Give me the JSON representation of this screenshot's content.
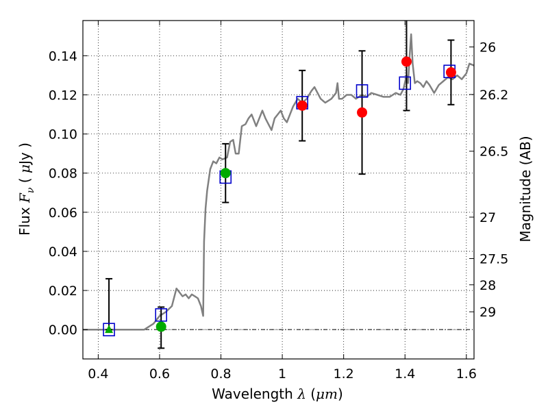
{
  "chart_data": {
    "type": "scatter",
    "xlabel": {
      "prefix": "Wavelength",
      "symbol": "λ",
      "open": "(",
      "unit": "μm",
      "close": ")"
    },
    "ylabel": {
      "prefix": "Flux",
      "symbol": "F",
      "subscript": "ν",
      "open": "(",
      "unit_mu": "μ",
      "unit_rest": "Jy",
      "close": ")"
    },
    "ylabel_right": "Magnitude (AB)",
    "xlim": [
      0.35,
      1.625
    ],
    "ylim": [
      -0.015,
      0.158
    ],
    "grid": true,
    "x_ticks": [
      {
        "value": 0.4,
        "label": "0.4"
      },
      {
        "value": 0.6,
        "label": "0.6"
      },
      {
        "value": 0.8,
        "label": "0.8"
      },
      {
        "value": 1.0,
        "label": "1"
      },
      {
        "value": 1.2,
        "label": "1.2"
      },
      {
        "value": 1.4,
        "label": "1.4"
      },
      {
        "value": 1.6,
        "label": "1.6"
      }
    ],
    "y_ticks": [
      {
        "value": 0.0,
        "label": "0.00"
      },
      {
        "value": 0.02,
        "label": "0.02"
      },
      {
        "value": 0.04,
        "label": "0.04"
      },
      {
        "value": 0.06,
        "label": "0.06"
      },
      {
        "value": 0.08,
        "label": "0.08"
      },
      {
        "value": 0.1,
        "label": "0.10"
      },
      {
        "value": 0.12,
        "label": "0.12"
      },
      {
        "value": 0.14,
        "label": "0.14"
      }
    ],
    "right_ticks": [
      {
        "label": "26",
        "flux": 0.1445
      },
      {
        "label": "26.2",
        "flux": 0.1202
      },
      {
        "label": "26.5",
        "flux": 0.0912
      },
      {
        "label": "27",
        "flux": 0.0575
      },
      {
        "label": "27.5",
        "flux": 0.0363
      },
      {
        "label": "28",
        "flux": 0.0229
      },
      {
        "label": "29",
        "flux": 0.0091
      }
    ],
    "spectrum": {
      "color": "#808080",
      "points": [
        [
          0.35,
          0.0
        ],
        [
          0.55,
          0.0
        ],
        [
          0.58,
          0.003
        ],
        [
          0.6,
          0.007
        ],
        [
          0.62,
          0.009
        ],
        [
          0.64,
          0.012
        ],
        [
          0.655,
          0.021
        ],
        [
          0.665,
          0.019
        ],
        [
          0.675,
          0.017
        ],
        [
          0.685,
          0.018
        ],
        [
          0.695,
          0.016
        ],
        [
          0.705,
          0.018
        ],
        [
          0.715,
          0.017
        ],
        [
          0.725,
          0.016
        ],
        [
          0.735,
          0.012
        ],
        [
          0.742,
          0.007
        ],
        [
          0.745,
          0.045
        ],
        [
          0.75,
          0.062
        ],
        [
          0.755,
          0.071
        ],
        [
          0.765,
          0.082
        ],
        [
          0.775,
          0.086
        ],
        [
          0.785,
          0.085
        ],
        [
          0.795,
          0.088
        ],
        [
          0.805,
          0.087
        ],
        [
          0.82,
          0.088
        ],
        [
          0.83,
          0.096
        ],
        [
          0.84,
          0.097
        ],
        [
          0.848,
          0.09
        ],
        [
          0.858,
          0.09
        ],
        [
          0.868,
          0.104
        ],
        [
          0.88,
          0.105
        ],
        [
          0.89,
          0.108
        ],
        [
          0.9,
          0.11
        ],
        [
          0.915,
          0.104
        ],
        [
          0.925,
          0.108
        ],
        [
          0.935,
          0.112
        ],
        [
          0.945,
          0.108
        ],
        [
          0.955,
          0.105
        ],
        [
          0.965,
          0.102
        ],
        [
          0.975,
          0.108
        ],
        [
          0.985,
          0.11
        ],
        [
          0.995,
          0.112
        ],
        [
          1.005,
          0.108
        ],
        [
          1.015,
          0.106
        ],
        [
          1.025,
          0.11
        ],
        [
          1.035,
          0.114
        ],
        [
          1.05,
          0.118
        ],
        [
          1.065,
          0.116
        ],
        [
          1.08,
          0.118
        ],
        [
          1.095,
          0.122
        ],
        [
          1.105,
          0.124
        ],
        [
          1.115,
          0.121
        ],
        [
          1.125,
          0.118
        ],
        [
          1.14,
          0.116
        ],
        [
          1.16,
          0.118
        ],
        [
          1.175,
          0.121
        ],
        [
          1.18,
          0.126
        ],
        [
          1.185,
          0.118
        ],
        [
          1.195,
          0.118
        ],
        [
          1.21,
          0.12
        ],
        [
          1.225,
          0.12
        ],
        [
          1.24,
          0.118
        ],
        [
          1.26,
          0.12
        ],
        [
          1.275,
          0.119
        ],
        [
          1.29,
          0.121
        ],
        [
          1.31,
          0.12
        ],
        [
          1.33,
          0.119
        ],
        [
          1.35,
          0.119
        ],
        [
          1.37,
          0.121
        ],
        [
          1.385,
          0.12
        ],
        [
          1.395,
          0.123
        ],
        [
          1.405,
          0.13
        ],
        [
          1.41,
          0.126
        ],
        [
          1.415,
          0.14
        ],
        [
          1.42,
          0.151
        ],
        [
          1.425,
          0.136
        ],
        [
          1.432,
          0.126
        ],
        [
          1.44,
          0.127
        ],
        [
          1.45,
          0.126
        ],
        [
          1.46,
          0.124
        ],
        [
          1.47,
          0.127
        ],
        [
          1.48,
          0.125
        ],
        [
          1.495,
          0.121
        ],
        [
          1.51,
          0.125
        ],
        [
          1.525,
          0.127
        ],
        [
          1.54,
          0.129
        ],
        [
          1.555,
          0.128
        ],
        [
          1.57,
          0.13
        ],
        [
          1.585,
          0.128
        ],
        [
          1.6,
          0.131
        ],
        [
          1.61,
          0.136
        ],
        [
          1.625,
          0.135
        ]
      ]
    },
    "model_points": {
      "marker": "open-square",
      "color": "#0000cc",
      "points": [
        [
          0.435,
          0.0
        ],
        [
          0.605,
          0.0075
        ],
        [
          0.815,
          0.078
        ],
        [
          1.065,
          0.116
        ],
        [
          1.26,
          0.122
        ],
        [
          1.4,
          0.126
        ],
        [
          1.545,
          0.132
        ]
      ]
    },
    "observations": [
      {
        "x": 0.435,
        "y": 0.0,
        "yerr_low": 0.0,
        "yerr_high": 0.026,
        "marker": "triangle",
        "color": "#00aa00"
      },
      {
        "x": 0.605,
        "y": 0.0015,
        "yerr_low": -0.0095,
        "yerr_high": 0.0115,
        "marker": "circle",
        "color": "#00aa00"
      },
      {
        "x": 0.815,
        "y": 0.08,
        "yerr_low": 0.065,
        "yerr_high": 0.095,
        "marker": "circle",
        "color": "#00aa00"
      },
      {
        "x": 1.065,
        "y": 0.1145,
        "yerr_low": 0.0965,
        "yerr_high": 0.1325,
        "marker": "circle",
        "color": "#ff0000"
      },
      {
        "x": 1.26,
        "y": 0.111,
        "yerr_low": 0.0795,
        "yerr_high": 0.1425,
        "marker": "circle",
        "color": "#ff0000"
      },
      {
        "x": 1.405,
        "y": 0.137,
        "yerr_low": 0.112,
        "yerr_high": 0.162,
        "marker": "circle",
        "color": "#ff0000"
      },
      {
        "x": 1.55,
        "y": 0.1315,
        "yerr_low": 0.115,
        "yerr_high": 0.148,
        "marker": "circle",
        "color": "#ff0000"
      }
    ]
  }
}
